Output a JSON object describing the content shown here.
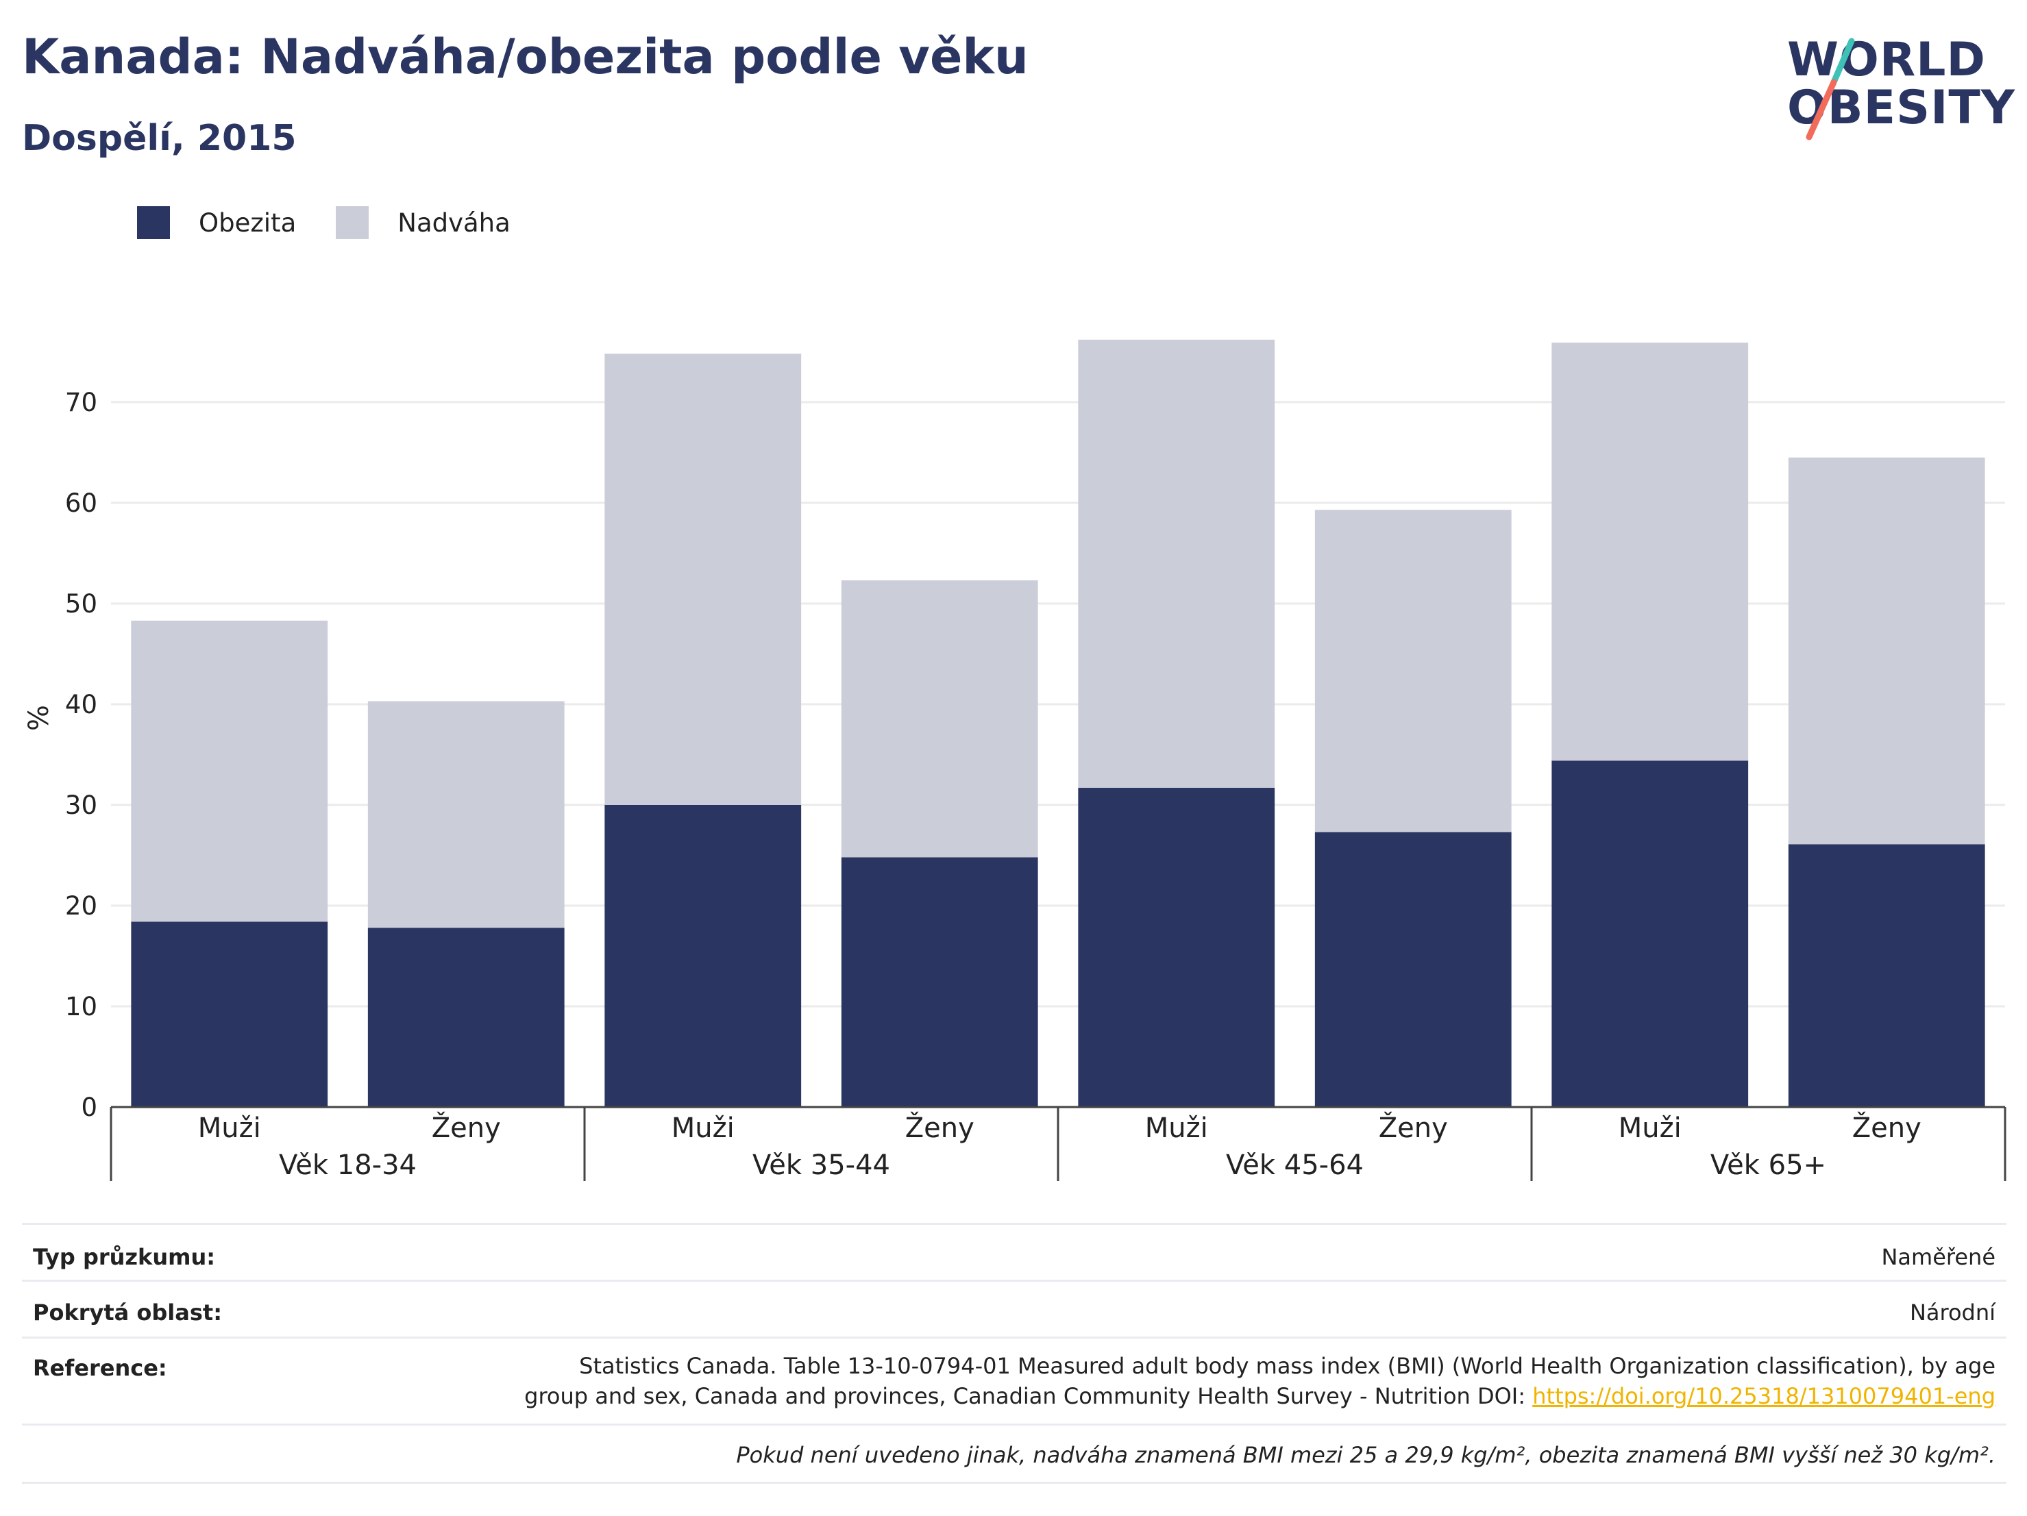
{
  "header": {
    "title": "Kanada: Nadváha/obezita podle věku",
    "subtitle": "Dospělí, 2015"
  },
  "logo": {
    "line1": "WORLD",
    "line2": "OBESITY"
  },
  "colors": {
    "obesity": "#2a3562",
    "overweight": "#cbcdd9",
    "title": "#2a3562",
    "link": "#f0b400",
    "logo_accent_teal": "#3ec1b6",
    "logo_accent_coral": "#f26b5b"
  },
  "chart_data": {
    "type": "bar",
    "stacked": true,
    "ylabel": "%",
    "ylim": [
      0,
      80
    ],
    "yticks": [
      0,
      10,
      20,
      30,
      40,
      50,
      60,
      70
    ],
    "grid": true,
    "legend_position": "top-left",
    "groups": [
      "Věk 18-34",
      "Věk 35-44",
      "Věk 45-64",
      "Věk 65+"
    ],
    "categories": [
      "Muži",
      "Ženy",
      "Muži",
      "Ženy",
      "Muži",
      "Ženy",
      "Muži",
      "Ženy"
    ],
    "series": [
      {
        "name": "Obezita",
        "values": [
          18.4,
          17.8,
          30.0,
          24.8,
          31.7,
          27.3,
          34.4,
          26.1
        ]
      },
      {
        "name": "Nadváha",
        "values": [
          29.9,
          22.5,
          44.8,
          27.5,
          44.5,
          32.0,
          41.5,
          38.4
        ]
      }
    ]
  },
  "info": {
    "survey_type_label": "Typ průzkumu:",
    "survey_type_value": "Naměřené",
    "coverage_label": "Pokrytá oblast:",
    "coverage_value": "Národní",
    "reference_label": "Reference:",
    "reference_line1": "Statistics Canada. Table 13-10-0794-01 Measured adult body mass index (BMI) (World Health Organization classification), by age",
    "reference_line2": "group and sex, Canada and provinces, Canadian Community Health Survey - Nutrition DOI: ",
    "reference_link": "https://doi.org/10.25318/1310079401-eng",
    "note": "Pokud není uvedeno jinak, nadváha znamená BMI mezi 25 a 29,9 kg/m², obezita znamená BMI vyšší než 30 kg/m²."
  }
}
